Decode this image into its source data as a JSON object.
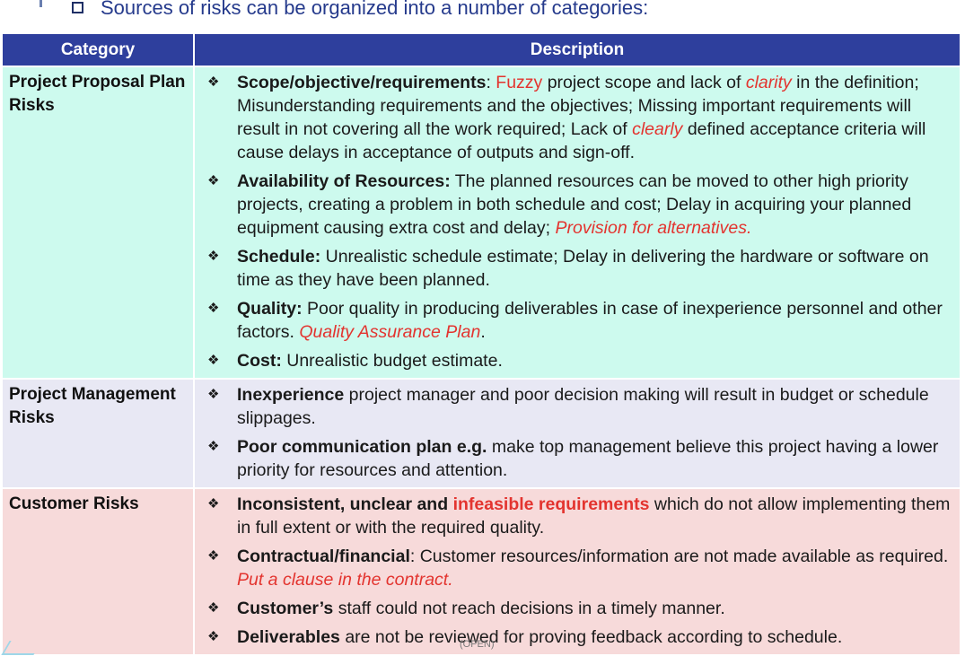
{
  "header": {
    "checkbox_icon": "empty-checkbox-icon",
    "text": "Sources of risks can be organized into a number of categories:"
  },
  "table": {
    "headers": {
      "category": "Category",
      "description": "Description"
    },
    "colors": {
      "header_bg": "#2e3f9d",
      "row1_bg": "#cdfaee",
      "row2_bg": "#e8e8f4",
      "row3_bg": "#f7dada",
      "highlight": "#e3342f"
    },
    "rows": [
      {
        "category": "Project Proposal Plan Risks",
        "items": [
          {
            "t1": "Scope/objective/requirements",
            "t2": ": ",
            "t3": "Fuzzy",
            "t4": " project scope and lack of ",
            "t5": "clarity",
            "t6": " in the definition; Misunderstanding requirements and the objectives; Missing important requirements will result in not covering all the work required; Lack of ",
            "t7": "clearly",
            "t8": " defined acceptance criteria will cause delays in acceptance of outputs and sign-off."
          },
          {
            "t1": "Availability of Resources:",
            "t2": " The planned resources can be moved to other high priority projects, creating a problem in both schedule and cost; Delay in acquiring your planned equipment causing extra cost and delay; ",
            "t3": "Provision for alternatives."
          },
          {
            "t1": "Schedule:",
            "t2": " Unrealistic schedule estimate; Delay in delivering the hardware or software on time as they have been planned."
          },
          {
            "t1": "Quality:",
            "t2": " Poor quality in producing deliverables in case of inexperience personnel and other factors. ",
            "t3": "Quality Assurance Plan",
            "t4": "."
          },
          {
            "t1": "Cost:",
            "t2": " Unrealistic budget estimate."
          }
        ]
      },
      {
        "category": "Project Management Risks",
        "items": [
          {
            "t1": "Inexperience",
            "t2": " project manager and poor decision making will result in budget or schedule slippages."
          },
          {
            "t1": "Poor communication plan e.g.",
            "t2": " make top management believe this project having a lower priority for resources and attention."
          }
        ]
      },
      {
        "category": "Customer Risks",
        "items": [
          {
            "t1": "Inconsistent, unclear and ",
            "t2": "infeasible requirements",
            "t3": " which do not allow implementing them in full extent or with the required quality."
          },
          {
            "t1": "Contractual/financial",
            "t2": ": Customer resources/information are not made available as required. ",
            "t3": "Put a clause in the contract."
          },
          {
            "t1": "Customer’s",
            "t2": " staff could not reach decisions in a timely manner."
          },
          {
            "t1": "Deliverables",
            "t2": " are not be reviewed for proving feedback according to schedule."
          }
        ]
      }
    ],
    "bullet_glyph": "❖"
  },
  "footer": {
    "text": "(OPEN)"
  }
}
